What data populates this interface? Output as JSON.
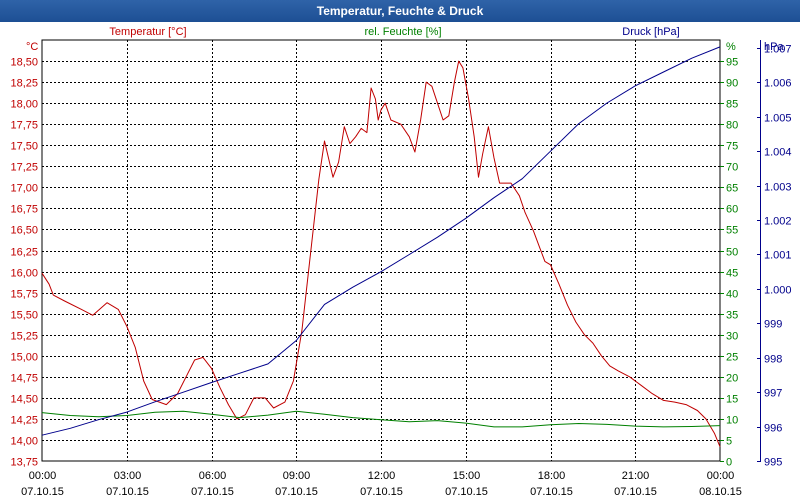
{
  "window": {
    "title": "Temperatur, Feuchte & Druck"
  },
  "chart_data": {
    "type": "line",
    "title": "Temperatur, Feuchte & Druck",
    "x_ticks": [
      {
        "h": 0,
        "time": "00:00",
        "date": "07.10.15"
      },
      {
        "h": 3,
        "time": "03:00",
        "date": "07.10.15"
      },
      {
        "h": 6,
        "time": "06:00",
        "date": "07.10.15"
      },
      {
        "h": 9,
        "time": "09:00",
        "date": "07.10.15"
      },
      {
        "h": 12,
        "time": "12:00",
        "date": "07.10.15"
      },
      {
        "h": 15,
        "time": "15:00",
        "date": "07.10.15"
      },
      {
        "h": 18,
        "time": "18:00",
        "date": "07.10.15"
      },
      {
        "h": 21,
        "time": "21:00",
        "date": "07.10.15"
      },
      {
        "h": 24,
        "time": "00:00",
        "date": "08.10.15"
      }
    ],
    "xlim": [
      0,
      24
    ],
    "axes": {
      "temperature": {
        "unit": "°C",
        "legend": "Temperatur [°C]",
        "color": "#c00000",
        "ylim": [
          13.75,
          18.75
        ],
        "ticks": [
          "13,75",
          "14,00",
          "14,25",
          "14,50",
          "14,75",
          "15,00",
          "15,25",
          "15,50",
          "15,75",
          "16,00",
          "16,25",
          "16,50",
          "16,75",
          "17,00",
          "17,25",
          "17,50",
          "17,75",
          "18,00",
          "18,25",
          "18,50"
        ]
      },
      "humidity": {
        "unit": "%",
        "legend": "rel. Feuchte [%]",
        "color": "#008000",
        "ylim": [
          0,
          100
        ],
        "ticks": [
          "0",
          "5",
          "10",
          "15",
          "20",
          "25",
          "30",
          "35",
          "40",
          "45",
          "50",
          "55",
          "60",
          "65",
          "70",
          "75",
          "80",
          "85",
          "90",
          "95"
        ]
      },
      "pressure": {
        "unit": "hPa",
        "legend": "Druck [hPa]",
        "color": "#00008b",
        "ylim": [
          995,
          1007.23
        ],
        "ticks": [
          "995",
          "996",
          "997",
          "998",
          "999",
          "1.000",
          "1.001",
          "1.002",
          "1.003",
          "1.004",
          "1.005",
          "1.006",
          "1.007"
        ]
      }
    },
    "series": [
      {
        "name": "Temperatur [°C]",
        "axis": "temperature",
        "color": "#c00000",
        "points": [
          [
            0,
            15.98
          ],
          [
            0.25,
            15.85
          ],
          [
            0.4,
            15.72
          ],
          [
            0.8,
            15.65
          ],
          [
            1.4,
            15.55
          ],
          [
            1.8,
            15.48
          ],
          [
            2.3,
            15.63
          ],
          [
            2.7,
            15.55
          ],
          [
            3.0,
            15.35
          ],
          [
            3.3,
            15.1
          ],
          [
            3.6,
            14.7
          ],
          [
            3.9,
            14.48
          ],
          [
            4.4,
            14.42
          ],
          [
            4.8,
            14.55
          ],
          [
            5.1,
            14.75
          ],
          [
            5.4,
            14.95
          ],
          [
            5.7,
            14.98
          ],
          [
            6.0,
            14.85
          ],
          [
            6.3,
            14.62
          ],
          [
            6.6,
            14.42
          ],
          [
            6.9,
            14.25
          ],
          [
            7.2,
            14.3
          ],
          [
            7.5,
            14.5
          ],
          [
            7.9,
            14.5
          ],
          [
            8.2,
            14.38
          ],
          [
            8.6,
            14.45
          ],
          [
            8.9,
            14.7
          ],
          [
            9.2,
            15.3
          ],
          [
            9.5,
            16.2
          ],
          [
            9.8,
            17.1
          ],
          [
            10.0,
            17.55
          ],
          [
            10.3,
            17.12
          ],
          [
            10.5,
            17.3
          ],
          [
            10.7,
            17.72
          ],
          [
            10.9,
            17.52
          ],
          [
            11.1,
            17.6
          ],
          [
            11.3,
            17.7
          ],
          [
            11.5,
            17.65
          ],
          [
            11.65,
            18.18
          ],
          [
            11.8,
            18.05
          ],
          [
            11.9,
            17.8
          ],
          [
            12.0,
            17.92
          ],
          [
            12.15,
            18.0
          ],
          [
            12.35,
            17.8
          ],
          [
            12.7,
            17.75
          ],
          [
            13.0,
            17.6
          ],
          [
            13.2,
            17.42
          ],
          [
            13.4,
            17.8
          ],
          [
            13.6,
            18.25
          ],
          [
            13.8,
            18.2
          ],
          [
            14.0,
            18.0
          ],
          [
            14.2,
            17.8
          ],
          [
            14.4,
            17.85
          ],
          [
            14.6,
            18.25
          ],
          [
            14.75,
            18.5
          ],
          [
            14.9,
            18.42
          ],
          [
            15.1,
            18.05
          ],
          [
            15.3,
            17.6
          ],
          [
            15.45,
            17.12
          ],
          [
            15.6,
            17.4
          ],
          [
            15.8,
            17.72
          ],
          [
            16.0,
            17.35
          ],
          [
            16.2,
            17.05
          ],
          [
            16.6,
            17.05
          ],
          [
            16.9,
            16.9
          ],
          [
            17.1,
            16.7
          ],
          [
            17.4,
            16.48
          ],
          [
            17.6,
            16.3
          ],
          [
            17.8,
            16.12
          ],
          [
            18.0,
            16.08
          ],
          [
            18.3,
            15.85
          ],
          [
            18.6,
            15.6
          ],
          [
            18.9,
            15.4
          ],
          [
            19.2,
            15.25
          ],
          [
            19.5,
            15.15
          ],
          [
            19.8,
            15.0
          ],
          [
            20.1,
            14.88
          ],
          [
            20.4,
            14.82
          ],
          [
            20.8,
            14.75
          ],
          [
            21.2,
            14.65
          ],
          [
            21.6,
            14.55
          ],
          [
            22.0,
            14.47
          ],
          [
            22.4,
            14.45
          ],
          [
            22.8,
            14.42
          ],
          [
            23.2,
            14.35
          ],
          [
            23.5,
            14.25
          ],
          [
            23.8,
            14.08
          ],
          [
            24.0,
            13.92
          ]
        ]
      },
      {
        "name": "rel. Feuchte [%]",
        "axis": "humidity",
        "color": "#008000",
        "points": [
          [
            0,
            11.5
          ],
          [
            1,
            10.8
          ],
          [
            2,
            10.5
          ],
          [
            3,
            10.8
          ],
          [
            4,
            11.6
          ],
          [
            5,
            11.8
          ],
          [
            6,
            11.1
          ],
          [
            7,
            10.3
          ],
          [
            8,
            10.9
          ],
          [
            9,
            11.8
          ],
          [
            10,
            11.1
          ],
          [
            11,
            10.3
          ],
          [
            12,
            9.8
          ],
          [
            13,
            9.3
          ],
          [
            14,
            9.6
          ],
          [
            15,
            9.0
          ],
          [
            16,
            8.1
          ],
          [
            17,
            8.1
          ],
          [
            18,
            8.6
          ],
          [
            19,
            8.9
          ],
          [
            20,
            8.7
          ],
          [
            21,
            8.3
          ],
          [
            22,
            8.1
          ],
          [
            23,
            8.2
          ],
          [
            24,
            8.4
          ]
        ]
      },
      {
        "name": "Druck [hPa]",
        "axis": "pressure",
        "color": "#00008b",
        "points": [
          [
            0,
            995.75
          ],
          [
            1,
            995.95
          ],
          [
            2,
            996.2
          ],
          [
            3,
            996.42
          ],
          [
            4,
            996.72
          ],
          [
            5,
            997.0
          ],
          [
            6,
            997.28
          ],
          [
            7,
            997.55
          ],
          [
            8,
            997.82
          ],
          [
            9,
            998.5
          ],
          [
            10,
            999.55
          ],
          [
            11,
            1000.05
          ],
          [
            12,
            1000.5
          ],
          [
            13,
            1001.0
          ],
          [
            14,
            1001.5
          ],
          [
            15,
            1002.05
          ],
          [
            16,
            1002.65
          ],
          [
            17,
            1003.2
          ],
          [
            18,
            1004.0
          ],
          [
            19,
            1004.8
          ],
          [
            20,
            1005.4
          ],
          [
            21,
            1005.9
          ],
          [
            22,
            1006.3
          ],
          [
            23,
            1006.7
          ],
          [
            24,
            1007.03
          ]
        ]
      }
    ]
  }
}
